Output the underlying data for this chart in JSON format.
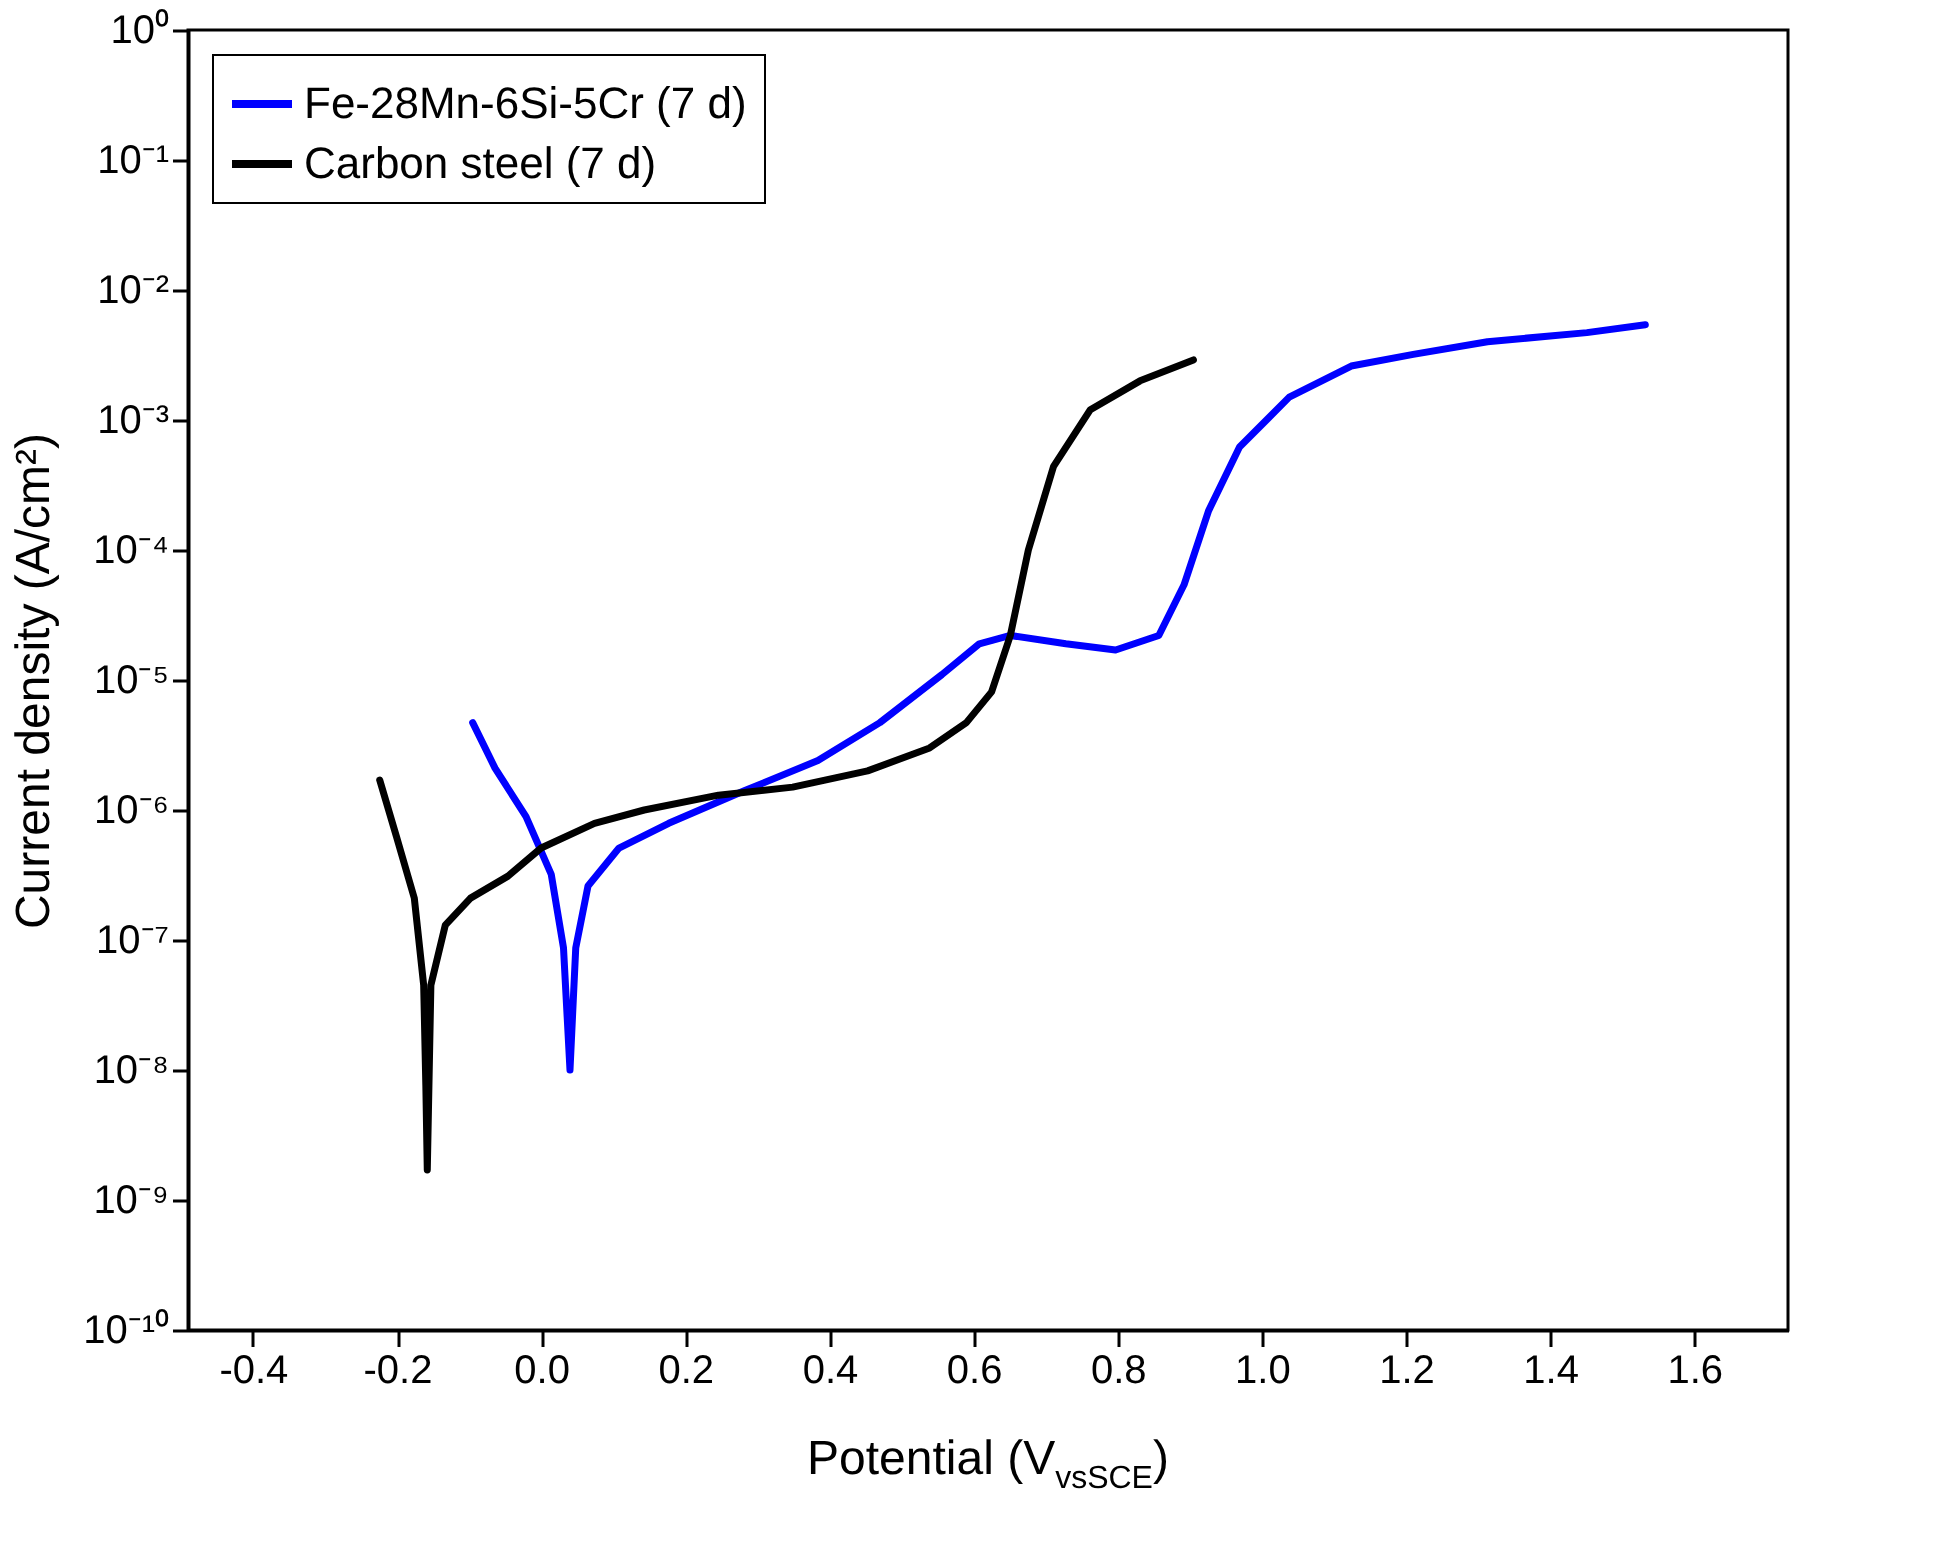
{
  "chart_data": {
    "type": "line",
    "xlabel": "Potential (V$_{vsSCE}$)",
    "ylabel": "Current density (A/cm²)",
    "log": "y",
    "grid": false,
    "legend": "top left",
    "line_style": "solid",
    "marker": "none",
    "xlim": [
      -0.49,
      1.73
    ],
    "ylim": [
      1e-10,
      1
    ],
    "xticks": [
      -0.4,
      -0.2,
      {
        "value": 0,
        "label": "0.0"
      },
      0.2,
      0.4,
      0.6,
      0.8,
      {
        "value": 1,
        "label": "1.0"
      },
      1.2,
      1.4,
      1.6
    ],
    "yticks": [
      {
        "value": 1e-10,
        "label": "10⁻¹⁰"
      },
      {
        "value": 1e-09,
        "label": "10⁻⁹"
      },
      {
        "value": 1e-08,
        "label": "10⁻⁸"
      },
      {
        "value": 1e-07,
        "label": "10⁻⁷"
      },
      {
        "value": 1e-06,
        "label": "10⁻⁶"
      },
      {
        "value": 1e-05,
        "label": "10⁻⁵"
      },
      {
        "value": 0.0001,
        "label": "10⁻⁴"
      },
      {
        "value": 0.001,
        "label": "10⁻³"
      },
      {
        "value": 0.01,
        "label": "10⁻²"
      },
      {
        "value": 0.1,
        "label": "10⁻¹"
      },
      {
        "value": 1,
        "label": "10⁰"
      }
    ],
    "series": [
      {
        "name": "Fe-28Mn-6Si-5Cr (7 d)",
        "color": "#0000ff",
        "x": [
          -0.095,
          -0.064,
          -0.021,
          0.014,
          0.031,
          0.04,
          0.048,
          0.065,
          0.108,
          0.177,
          0.281,
          0.384,
          0.47,
          0.556,
          0.608,
          0.651,
          0.728,
          0.797,
          0.857,
          0.892,
          0.926,
          0.969,
          1.038,
          1.124,
          1.21,
          1.313,
          1.451,
          1.532
        ],
        "values": [
          4.7e-06,
          2.1e-06,
          8.9e-07,
          3.2e-07,
          8.7e-08,
          1e-08,
          8.7e-08,
          2.6e-07,
          5.1e-07,
          7.9e-07,
          1.4e-06,
          2.4e-06,
          4.7e-06,
          1.1e-05,
          1.9e-05,
          2.2e-05,
          1.9e-05,
          1.7e-05,
          2.2e-05,
          5.4e-05,
          0.0002,
          0.00062,
          0.0015,
          0.0026,
          0.0032,
          0.004,
          0.0047,
          0.0054
        ]
      },
      {
        "name": "Carbon steel (7 d)",
        "color": "#000000",
        "x": [
          -0.224,
          -0.201,
          -0.176,
          -0.163,
          -0.16,
          -0.158,
          -0.153,
          -0.133,
          -0.098,
          -0.046,
          0.0,
          0.074,
          0.143,
          0.246,
          0.349,
          0.453,
          0.539,
          0.59,
          0.625,
          0.651,
          0.676,
          0.711,
          0.762,
          0.831,
          0.905
        ],
        "values": [
          1.7e-06,
          6.3e-07,
          2.1e-07,
          4.5e-08,
          7.6e-09,
          1.7e-09,
          4.5e-08,
          1.3e-07,
          2.1e-07,
          3.1e-07,
          5.1e-07,
          7.9e-07,
          1e-06,
          1.3e-06,
          1.5e-06,
          2e-06,
          3e-06,
          4.7e-06,
          8.1e-06,
          2.2e-05,
          0.0001,
          0.00044,
          0.0012,
          0.002,
          0.0029
        ]
      }
    ]
  }
}
